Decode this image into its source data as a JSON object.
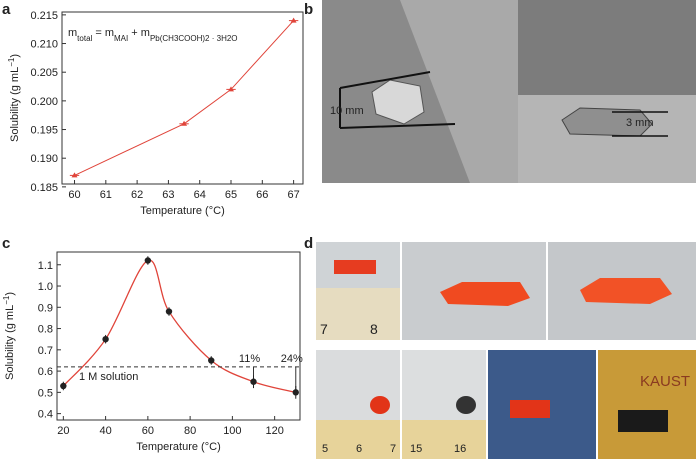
{
  "panels": [
    "a",
    "b",
    "c",
    "d"
  ],
  "photo_texts": {
    "b": [
      "10 mm",
      "3 mm"
    ],
    "d": [
      "7",
      "8",
      "5",
      "6",
      "7",
      "15",
      "16",
      "KAUST"
    ]
  },
  "chart_data": [
    {
      "type": "line",
      "color": "#e0443a",
      "formula": [
        "m",
        "total",
        " = m",
        "MAI",
        " + m",
        "Pb(CH3COOH)2 · 3H2O"
      ],
      "xlabel": "Temperature (°C)",
      "ylabel": [
        "Solubility (g mL",
        "−1",
        ")"
      ],
      "x": [
        60,
        63.5,
        65,
        67
      ],
      "values": [
        0.187,
        0.196,
        0.202,
        0.214
      ],
      "xerr": [
        0.15,
        0.15,
        0.15,
        0.15
      ],
      "xlim": [
        59.6,
        67.3
      ],
      "xticks": [
        60,
        61,
        62,
        63,
        64,
        65,
        66,
        67
      ],
      "ylim": [
        0.1855,
        0.2155
      ],
      "yticks": [
        0.185,
        {
          "value": 0.19,
          "label": "0.190"
        },
        0.195,
        {
          "value": 0.2,
          "label": "0.200"
        },
        0.205,
        {
          "value": 0.21,
          "label": "0.210"
        },
        0.215
      ]
    },
    {
      "type": "scatter",
      "color": "#e0443a",
      "marker_color": "#222222",
      "xlabel": "Temperature (°C)",
      "ylabel": [
        "Solubility (g mL",
        "−1",
        ")"
      ],
      "x": [
        20,
        40,
        60,
        70,
        90,
        110,
        130
      ],
      "values": [
        0.53,
        0.75,
        1.12,
        0.88,
        0.65,
        0.55,
        0.5
      ],
      "yerr": [
        0.02,
        0.02,
        0.02,
        0.02,
        0.02,
        0.03,
        0.03
      ],
      "xlim": [
        17,
        132
      ],
      "xticks": [
        20,
        40,
        60,
        80,
        100,
        120
      ],
      "ylim": [
        0.37,
        1.16
      ],
      "yticks": [
        0.4,
        0.5,
        0.6,
        0.7,
        0.8,
        0.9,
        {
          "value": 1.0,
          "label": "1.0"
        },
        1.1
      ],
      "hline": {
        "value": 0.62,
        "label": "1 M solution"
      },
      "annotations": [
        {
          "x": 110,
          "label": "11%"
        },
        {
          "x": 130,
          "label": "24%"
        }
      ]
    }
  ]
}
